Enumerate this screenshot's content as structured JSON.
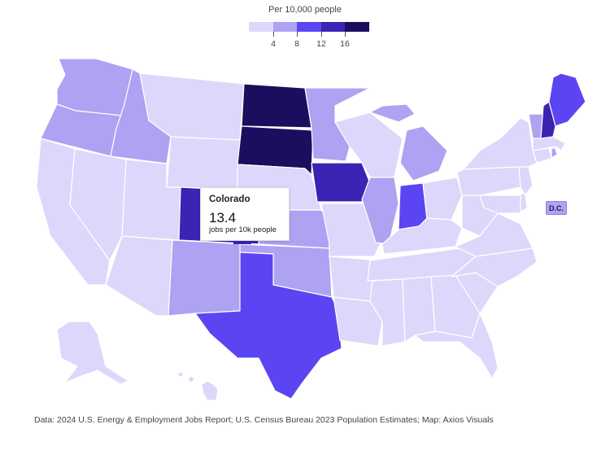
{
  "legend": {
    "title": "Per 10,000 people",
    "bins": [
      {
        "color": "#dcd7fb"
      },
      {
        "color": "#aea2f3"
      },
      {
        "color": "#5b45f2"
      },
      {
        "color": "#3b23b4"
      },
      {
        "color": "#1a0f5e"
      }
    ],
    "ticks": [
      "4",
      "8",
      "12",
      "16"
    ]
  },
  "tooltip": {
    "state": "Colorado",
    "value": "13.4",
    "unit": "jobs per 10k people"
  },
  "dc_label": "D.C.",
  "source": "Data: 2024 U.S. Energy & Employment Jobs Report; U.S. Census Bureau 2023 Population Estimates; Map: Axios Visuals",
  "chart_data": {
    "type": "choropleth",
    "value_label": "Per 10,000 people",
    "scale_breaks": [
      4,
      8,
      12,
      16
    ],
    "states": [
      {
        "state": "Washington",
        "bin": 2
      },
      {
        "state": "Oregon",
        "bin": 2
      },
      {
        "state": "California",
        "bin": 1
      },
      {
        "state": "Nevada",
        "bin": 1
      },
      {
        "state": "Idaho",
        "bin": 2
      },
      {
        "state": "Montana",
        "bin": 1
      },
      {
        "state": "Wyoming",
        "bin": 1
      },
      {
        "state": "Utah",
        "bin": 1
      },
      {
        "state": "Arizona",
        "bin": 1
      },
      {
        "state": "Colorado",
        "bin": 4,
        "value": 13.4
      },
      {
        "state": "New Mexico",
        "bin": 2
      },
      {
        "state": "North Dakota",
        "bin": 5
      },
      {
        "state": "South Dakota",
        "bin": 5
      },
      {
        "state": "Nebraska",
        "bin": 1
      },
      {
        "state": "Kansas",
        "bin": 2
      },
      {
        "state": "Oklahoma",
        "bin": 2
      },
      {
        "state": "Texas",
        "bin": 3
      },
      {
        "state": "Minnesota",
        "bin": 2
      },
      {
        "state": "Iowa",
        "bin": 4
      },
      {
        "state": "Missouri",
        "bin": 1
      },
      {
        "state": "Arkansas",
        "bin": 1
      },
      {
        "state": "Louisiana",
        "bin": 1
      },
      {
        "state": "Wisconsin",
        "bin": 1
      },
      {
        "state": "Illinois",
        "bin": 2
      },
      {
        "state": "Michigan",
        "bin": 2
      },
      {
        "state": "Indiana",
        "bin": 3
      },
      {
        "state": "Ohio",
        "bin": 1
      },
      {
        "state": "Kentucky",
        "bin": 1
      },
      {
        "state": "Tennessee",
        "bin": 1
      },
      {
        "state": "Mississippi",
        "bin": 1
      },
      {
        "state": "Alabama",
        "bin": 1
      },
      {
        "state": "Georgia",
        "bin": 1
      },
      {
        "state": "Florida",
        "bin": 1
      },
      {
        "state": "South Carolina",
        "bin": 1
      },
      {
        "state": "North Carolina",
        "bin": 1
      },
      {
        "state": "Virginia",
        "bin": 1
      },
      {
        "state": "West Virginia",
        "bin": 1
      },
      {
        "state": "Maryland",
        "bin": 1
      },
      {
        "state": "Delaware",
        "bin": 1
      },
      {
        "state": "Pennsylvania",
        "bin": 1
      },
      {
        "state": "New Jersey",
        "bin": 1
      },
      {
        "state": "New York",
        "bin": 1
      },
      {
        "state": "Connecticut",
        "bin": 1
      },
      {
        "state": "Rhode Island",
        "bin": 2
      },
      {
        "state": "Massachusetts",
        "bin": 1
      },
      {
        "state": "Vermont",
        "bin": 2
      },
      {
        "state": "New Hampshire",
        "bin": 4
      },
      {
        "state": "Maine",
        "bin": 3
      },
      {
        "state": "Alaska",
        "bin": 1
      },
      {
        "state": "Hawaii",
        "bin": 1
      },
      {
        "state": "District of Columbia",
        "bin": 2
      }
    ]
  }
}
